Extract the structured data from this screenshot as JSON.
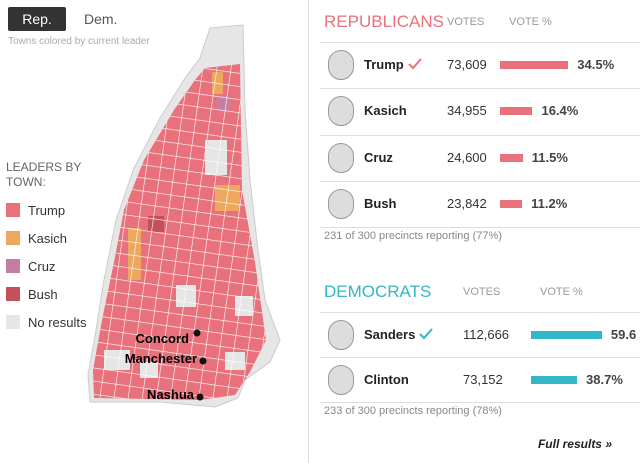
{
  "tabs": [
    "Rep.",
    "Dem."
  ],
  "map_note": "Towns colored by current leader",
  "legend": {
    "title": "LEADERS BY TOWN:",
    "items": [
      {
        "label": "Trump",
        "color": "#e8717b"
      },
      {
        "label": "Kasich",
        "color": "#eea75f"
      },
      {
        "label": "Cruz",
        "color": "#c47ea3"
      },
      {
        "label": "Bush",
        "color": "#c4505a"
      },
      {
        "label": "No results",
        "color": "#e6e6e6"
      }
    ]
  },
  "cities": [
    "Concord",
    "Manchester",
    "Nashua"
  ],
  "republicans": {
    "title": "REPUBLICANS",
    "color": "#e8717b",
    "columns": [
      "VOTES",
      "VOTE %"
    ],
    "rows": [
      {
        "name": "Trump",
        "winner": true,
        "votes": "73,609",
        "pct": 34.5,
        "pct_label": "34.5%"
      },
      {
        "name": "Kasich",
        "votes": "34,955",
        "pct": 16.4,
        "pct_label": "16.4%"
      },
      {
        "name": "Cruz",
        "votes": "24,600",
        "pct": 11.5,
        "pct_label": "11.5%"
      },
      {
        "name": "Bush",
        "votes": "23,842",
        "pct": 11.2,
        "pct_label": "11.2%"
      }
    ],
    "reporting": "231 of 300 precincts reporting (77%)"
  },
  "democrats": {
    "title": "DEMOCRATS",
    "color": "#33b6c6",
    "columns": [
      "VOTES",
      "VOTE %"
    ],
    "rows": [
      {
        "name": "Sanders",
        "winner": true,
        "votes": "112,666",
        "pct": 59.6,
        "pct_label": "59.6"
      },
      {
        "name": "Clinton",
        "votes": "73,152",
        "pct": 38.7,
        "pct_label": "38.7%"
      }
    ],
    "reporting": "233 of 300 precincts reporting (78%)"
  },
  "footer": "Full results »"
}
